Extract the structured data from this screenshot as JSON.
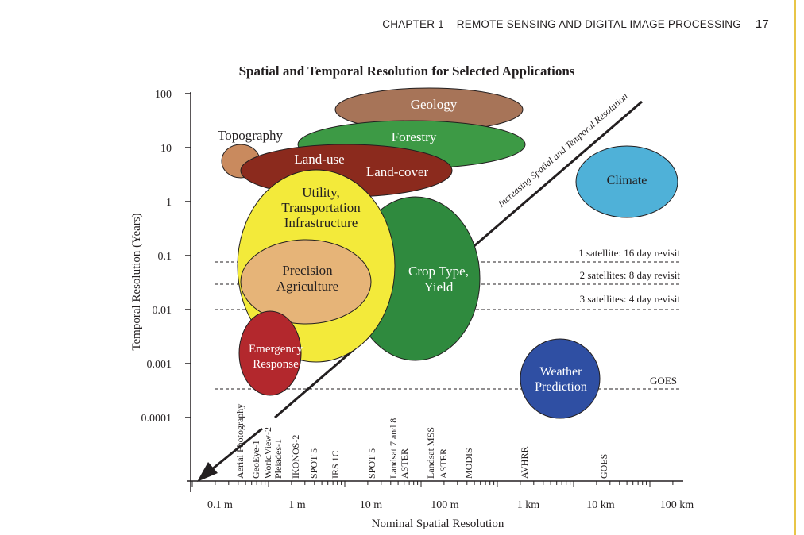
{
  "running_head": {
    "chapter": "CHAPTER 1",
    "title": "REMOTE SENSING AND DIGITAL IMAGE PROCESSING",
    "page": "17"
  },
  "figure": {
    "title": "Spatial and Temporal Resolution for Selected Applications",
    "y_label": "Temporal Resolution (Years)",
    "x_label": "Nominal Spatial Resolution",
    "y_ticks": [
      "100",
      "10",
      "1",
      "0.1",
      "0.01",
      "0.001",
      "0.0001"
    ],
    "x_ticks": [
      "0.1 m",
      "1 m",
      "10 m",
      "100 m",
      "1 km",
      "10 km",
      "100 km"
    ],
    "sensors": [
      "Aerial Photography",
      "GeoEye-1",
      "WorldView-2",
      "Pleiades-1",
      "IKONOS-2",
      "SPOT 5",
      "IRS 1C",
      "SPOT 5",
      "Landsat 7 and 8",
      "ASTER",
      "Landsat MSS",
      "ASTER",
      "MODIS",
      "AVHRR",
      "GOES"
    ],
    "revisit": [
      "1 satellite:  16 day revisit",
      "2 satellites:  8 day revisit",
      "3 satellites:  4 day revisit",
      "GOES"
    ],
    "arrow_label": "Increasing Spatial and Temporal Resolution",
    "applications": {
      "geology": "Geology",
      "forestry": "Forestry",
      "topography": "Topography",
      "land_use": "Land-use",
      "land_cover": "Land-cover",
      "climate": "Climate",
      "utility_1": "Utility,",
      "utility_2": "Transportation",
      "utility_3": "Infrastructure",
      "precision_1": "Precision",
      "precision_2": "Agriculture",
      "crop_1": "Crop Type,",
      "crop_2": "Yield",
      "emergency_1": "Emergency",
      "emergency_2": "Response",
      "weather_1": "Weather",
      "weather_2": "Prediction"
    },
    "colors": {
      "geology": "#a77458",
      "forestry": "#3d9a45",
      "topography": "#c98a5e",
      "land": "#8b2a1d",
      "climate": "#4fb1d8",
      "utility": "#f3ea3a",
      "precision": "#e6b478",
      "crop": "#2f8a3e",
      "emergency": "#b3282d",
      "weather": "#2f4fa3"
    }
  }
}
